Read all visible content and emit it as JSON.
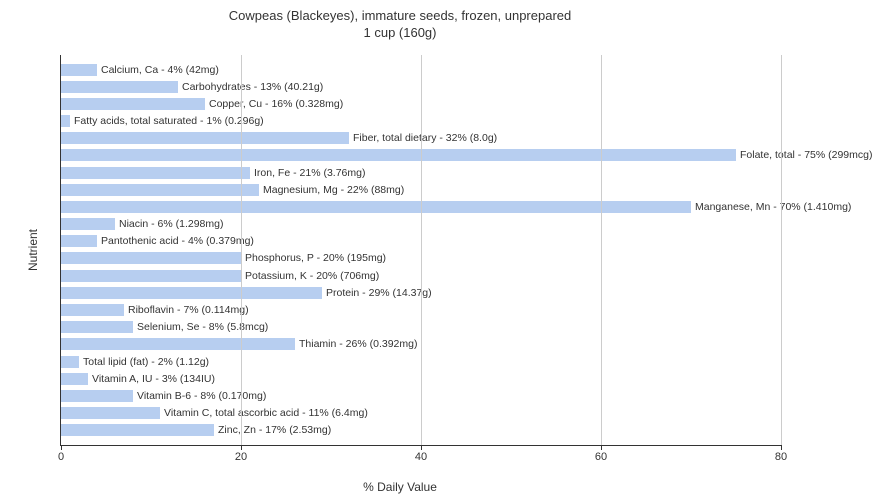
{
  "chart": {
    "type": "bar-horizontal",
    "title_line1": "Cowpeas (Blackeyes), immature seeds, frozen, unprepared",
    "title_line2": "1 cup (160g)",
    "title_fontsize": 13,
    "x_label": "% Daily Value",
    "y_label": "Nutrient",
    "label_fontsize": 12,
    "xlim_min": 0,
    "xlim_max": 80,
    "x_ticks": [
      0,
      20,
      40,
      60,
      80
    ],
    "bar_color": "#b7cef0",
    "grid_color": "#cccccc",
    "background_color": "#ffffff",
    "text_color": "#333333",
    "bar_label_fontsize": 10.5,
    "nutrients": [
      {
        "label": "Calcium, Ca - 4% (42mg)",
        "value": 4
      },
      {
        "label": "Carbohydrates - 13% (40.21g)",
        "value": 13
      },
      {
        "label": "Copper, Cu - 16% (0.328mg)",
        "value": 16
      },
      {
        "label": "Fatty acids, total saturated - 1% (0.296g)",
        "value": 1
      },
      {
        "label": "Fiber, total dietary - 32% (8.0g)",
        "value": 32
      },
      {
        "label": "Folate, total - 75% (299mcg)",
        "value": 75
      },
      {
        "label": "Iron, Fe - 21% (3.76mg)",
        "value": 21
      },
      {
        "label": "Magnesium, Mg - 22% (88mg)",
        "value": 22
      },
      {
        "label": "Manganese, Mn - 70% (1.410mg)",
        "value": 70
      },
      {
        "label": "Niacin - 6% (1.298mg)",
        "value": 6
      },
      {
        "label": "Pantothenic acid - 4% (0.379mg)",
        "value": 4
      },
      {
        "label": "Phosphorus, P - 20% (195mg)",
        "value": 20
      },
      {
        "label": "Potassium, K - 20% (706mg)",
        "value": 20
      },
      {
        "label": "Protein - 29% (14.37g)",
        "value": 29
      },
      {
        "label": "Riboflavin - 7% (0.114mg)",
        "value": 7
      },
      {
        "label": "Selenium, Se - 8% (5.8mcg)",
        "value": 8
      },
      {
        "label": "Thiamin - 26% (0.392mg)",
        "value": 26
      },
      {
        "label": "Total lipid (fat) - 2% (1.12g)",
        "value": 2
      },
      {
        "label": "Vitamin A, IU - 3% (134IU)",
        "value": 3
      },
      {
        "label": "Vitamin B-6 - 8% (0.170mg)",
        "value": 8
      },
      {
        "label": "Vitamin C, total ascorbic acid - 11% (6.4mg)",
        "value": 11
      },
      {
        "label": "Zinc, Zn - 17% (2.53mg)",
        "value": 17
      }
    ]
  }
}
